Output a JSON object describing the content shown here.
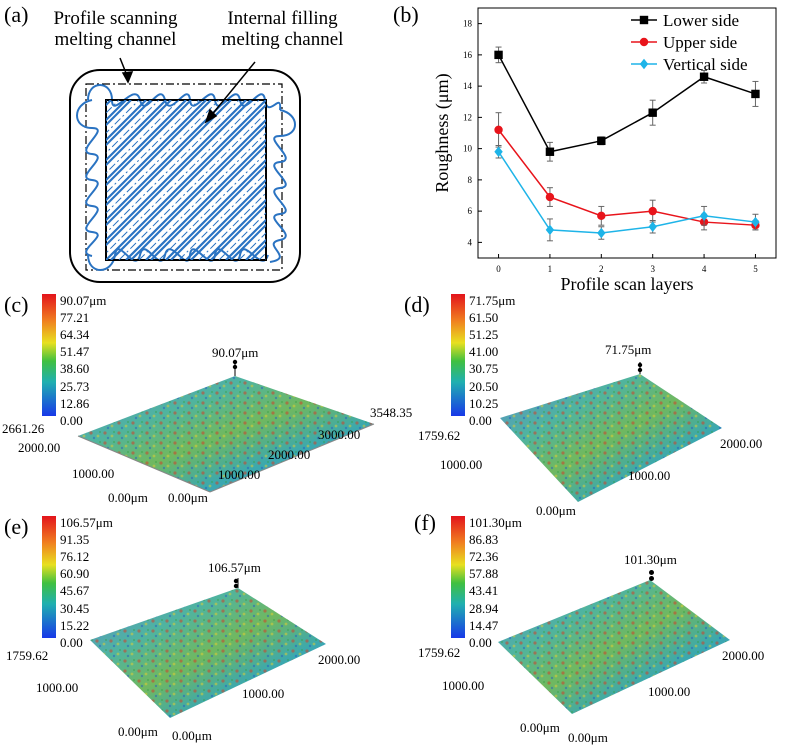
{
  "panel_a": {
    "label": "(a)",
    "left_annotation": [
      "Profile scanning",
      "melting channel"
    ],
    "right_annotation": [
      "Internal filling",
      "melting channel"
    ]
  },
  "chart_data": {
    "type": "line",
    "panel_label": "(b)",
    "xlabel": "Profile scan layers",
    "ylabel": "Roughness (μm)",
    "x": [
      0,
      1,
      2,
      3,
      4,
      5
    ],
    "xticks": [
      "0",
      "1",
      "2",
      "3",
      "4",
      "5"
    ],
    "ylim": [
      3,
      19
    ],
    "yticks": [
      4,
      6,
      8,
      10,
      12,
      14,
      16,
      18
    ],
    "legend_position": "top-right",
    "series": [
      {
        "name": "Lower side",
        "color": "#000000",
        "marker": "square",
        "values": [
          16.0,
          9.8,
          10.5,
          12.3,
          14.6,
          13.5
        ],
        "errors": [
          0.5,
          0.6,
          0.25,
          0.8,
          0.4,
          0.8
        ]
      },
      {
        "name": "Upper side",
        "color": "#e8141b",
        "marker": "circle",
        "values": [
          11.2,
          6.9,
          5.7,
          6.0,
          5.3,
          5.1
        ],
        "errors": [
          1.1,
          0.6,
          0.6,
          0.7,
          0.5,
          0.3
        ]
      },
      {
        "name": "Vertical side",
        "color": "#1eb4e8",
        "marker": "diamond",
        "values": [
          9.8,
          4.8,
          4.6,
          5.0,
          5.7,
          5.3
        ],
        "errors": [
          0.4,
          0.7,
          0.4,
          0.4,
          0.6,
          0.5
        ]
      }
    ]
  },
  "panel_c": {
    "label": "(c)",
    "colorbar": [
      "90.07μm",
      "77.21",
      "64.34",
      "51.47",
      "38.60",
      "25.73",
      "12.86",
      "0.00"
    ],
    "peak": "90.07μm",
    "axis_right": "3548.35",
    "axis_right_mid1": "3000.00",
    "axis_right_mid2": "2000.00",
    "axis_right_mid3": "1000.00",
    "axis_left_top": "2661.26",
    "axis_left_mid1": "2000.00",
    "axis_left_mid2": "1000.00",
    "origin_left": "0.00μm",
    "origin_right": "0.00μm"
  },
  "panel_d": {
    "label": "(d)",
    "colorbar": [
      "71.75μm",
      "61.50",
      "51.25",
      "41.00",
      "30.75",
      "20.50",
      "10.25",
      "0.00"
    ],
    "peak": "71.75μm",
    "axis_left_top": "1759.62",
    "axis_left_mid": "1000.00",
    "axis_right_top": "2000.00",
    "axis_right_mid": "1000.00",
    "origin": "0.00μm"
  },
  "panel_e": {
    "label": "(e)",
    "colorbar": [
      "106.57μm",
      "91.35",
      "76.12",
      "60.90",
      "45.67",
      "30.45",
      "15.22",
      "0.00"
    ],
    "peak": "106.57μm",
    "axis_left_top": "1759.62",
    "axis_left_mid": "1000.00",
    "axis_right_top": "2000.00",
    "axis_right_mid": "1000.00",
    "origin_left": "0.00μm",
    "origin_right": "0.00μm"
  },
  "panel_f": {
    "label": "(f)",
    "colorbar": [
      "101.30μm",
      "86.83",
      "72.36",
      "57.88",
      "43.41",
      "28.94",
      "14.47",
      "0.00"
    ],
    "peak": "101.30μm",
    "axis_left_top": "1759.62",
    "axis_left_mid": "1000.00",
    "axis_right_top": "2000.00",
    "axis_right_mid": "1000.00",
    "origin_left": "0.00μm",
    "origin_right": "0.00μm"
  }
}
